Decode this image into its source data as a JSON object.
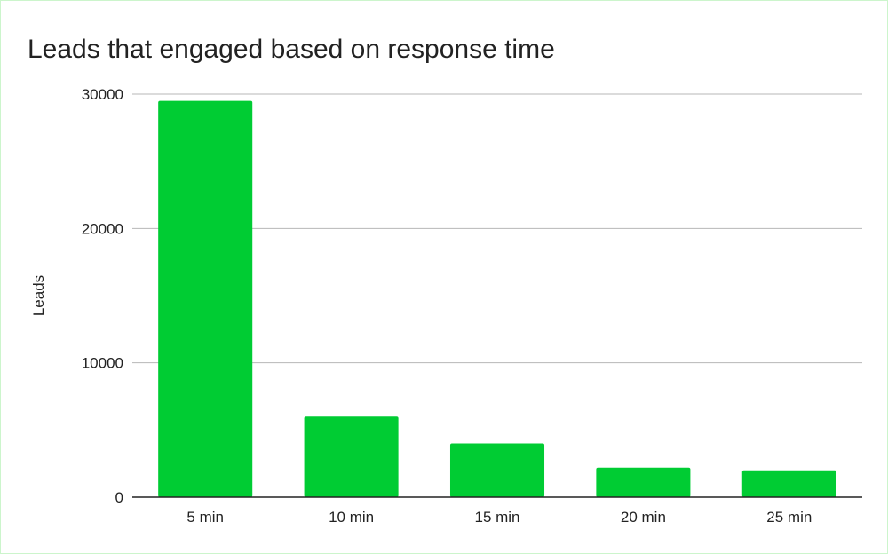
{
  "chart_data": {
    "type": "bar",
    "title": "Leads that engaged based on response time",
    "xlabel": "",
    "ylabel": "Leads",
    "categories": [
      "5 min",
      "10 min",
      "15 min",
      "20 min",
      "25 min"
    ],
    "values": [
      29500,
      6000,
      4000,
      2200,
      2000
    ],
    "ylim": [
      0,
      30000
    ],
    "yticks": [
      "0",
      "10000",
      "20000",
      "30000"
    ],
    "grid": true,
    "legend": "none",
    "bar_color": "#00cc33"
  }
}
